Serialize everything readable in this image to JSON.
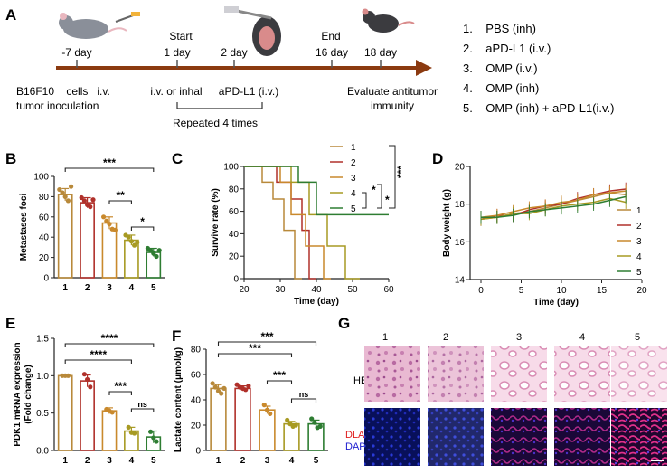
{
  "colors": {
    "g1": "#b8893a",
    "g2": "#b0302a",
    "g3": "#c9892c",
    "g4": "#a79a23",
    "g5": "#2e7d32",
    "axis": "#222222",
    "arrow": "#8b3a10"
  },
  "timeline": {
    "panel": "A",
    "day_labels": [
      "-7 day",
      "1 day",
      "2 day",
      "16 day",
      "18 day"
    ],
    "start": "Start",
    "end": "End",
    "notes": [
      "B16F10    cells   i.v.",
      "tumor inoculation",
      "i.v. or inhal",
      "aPD-L1 (i.v.)",
      "Repeated 4 times",
      "Evaluate antitumor",
      "immunity"
    ]
  },
  "legend_groups": [
    "1.    PBS (inh)",
    "2.    aPD-L1 (i.v.)",
    "3.    OMP (i.v.)",
    "4.    OMP (inh)",
    "5.    OMP (inh) + aPD-L1(i.v.)"
  ],
  "chart_data": [
    {
      "panel": "B",
      "type": "bar",
      "ylabel": "Metastases foci",
      "categories": [
        "1",
        "2",
        "3",
        "4",
        "5"
      ],
      "values": [
        82,
        74,
        54,
        37,
        25
      ],
      "errors": [
        6,
        5,
        6,
        5,
        4
      ],
      "ylim": [
        0,
        100
      ],
      "yticks": [
        "0",
        "20",
        "40",
        "60",
        "80",
        "100"
      ],
      "points": [
        [
          87,
          84,
          80,
          76,
          90
        ],
        [
          79,
          76,
          72,
          70,
          77
        ],
        [
          60,
          56,
          53,
          48,
          47
        ],
        [
          42,
          40,
          36,
          32,
          35
        ],
        [
          29,
          27,
          24,
          21,
          27
        ]
      ],
      "sig": [
        {
          "a": 1,
          "b": 5,
          "label": "***"
        },
        {
          "a": 3,
          "b": 4,
          "label": "**"
        },
        {
          "a": 4,
          "b": 5,
          "label": "*"
        }
      ]
    },
    {
      "panel": "C",
      "type": "line",
      "xlabel": "Time (day)",
      "ylabel": "Survive rate (%)",
      "xticks": [
        "20",
        "30",
        "40",
        "50",
        "60"
      ],
      "yticks": [
        "0",
        "20",
        "40",
        "60",
        "80",
        "100"
      ],
      "xlim": [
        20,
        60
      ],
      "ylim": [
        0,
        100
      ],
      "series": [
        {
          "name": "1",
          "x": [
            20,
            25,
            25,
            28,
            28,
            31,
            31,
            34,
            34,
            36
          ],
          "y": [
            100,
            100,
            86,
            86,
            71,
            71,
            43,
            43,
            0,
            0
          ]
        },
        {
          "name": "2",
          "x": [
            20,
            29,
            29,
            33,
            33,
            36,
            36,
            38,
            38,
            40
          ],
          "y": [
            100,
            100,
            86,
            86,
            71,
            71,
            43,
            43,
            0,
            0
          ]
        },
        {
          "name": "3",
          "x": [
            20,
            30,
            30,
            33,
            33,
            37,
            37,
            42,
            42,
            44
          ],
          "y": [
            100,
            100,
            86,
            86,
            57,
            57,
            29,
            29,
            0,
            0
          ]
        },
        {
          "name": "4",
          "x": [
            20,
            33,
            33,
            38,
            38,
            43,
            43,
            48,
            48,
            52
          ],
          "y": [
            100,
            100,
            86,
            86,
            57,
            57,
            29,
            29,
            0,
            0
          ]
        },
        {
          "name": "5",
          "x": [
            20,
            35,
            35,
            40,
            40,
            60
          ],
          "y": [
            100,
            100,
            86,
            86,
            57,
            57
          ]
        }
      ],
      "sig": [
        {
          "label": "*"
        },
        {
          "label": "*"
        },
        {
          "label": "***"
        }
      ]
    },
    {
      "panel": "D",
      "type": "line",
      "xlabel": "Time (day)",
      "ylabel": "Body weight (g)",
      "xticks": [
        "0",
        "5",
        "10",
        "15",
        "20"
      ],
      "yticks": [
        "14",
        "16",
        "18",
        "20"
      ],
      "xlim": [
        0,
        20
      ],
      "ylim": [
        14,
        20
      ],
      "x": [
        0,
        2,
        4,
        6,
        8,
        10,
        12,
        14,
        16,
        18
      ],
      "series": [
        {
          "name": "1",
          "values": [
            17.2,
            17.3,
            17.5,
            17.6,
            17.8,
            18.0,
            18.2,
            18.4,
            18.6,
            18.5
          ]
        },
        {
          "name": "2",
          "values": [
            17.2,
            17.4,
            17.4,
            17.7,
            17.9,
            18.0,
            18.3,
            18.5,
            18.7,
            18.8
          ]
        },
        {
          "name": "3",
          "values": [
            17.3,
            17.4,
            17.6,
            17.8,
            17.9,
            18.1,
            18.2,
            18.5,
            18.6,
            18.7
          ]
        },
        {
          "name": "4",
          "values": [
            17.2,
            17.3,
            17.5,
            17.5,
            17.7,
            17.9,
            18.0,
            18.1,
            18.3,
            18.1
          ]
        },
        {
          "name": "5",
          "values": [
            17.3,
            17.3,
            17.4,
            17.6,
            17.7,
            17.8,
            17.9,
            18.0,
            18.2,
            18.4
          ]
        }
      ]
    },
    {
      "panel": "E",
      "type": "bar",
      "ylabel": "PDK1 mRNA expression (Fold change)",
      "categories": [
        "1",
        "2",
        "3",
        "4",
        "5"
      ],
      "values": [
        1.0,
        0.93,
        0.53,
        0.26,
        0.18
      ],
      "errors": [
        0.01,
        0.08,
        0.04,
        0.05,
        0.08
      ],
      "ylim": [
        0,
        1.5
      ],
      "yticks": [
        "0.0",
        "0.5",
        "1.0",
        "1.5"
      ],
      "points": [
        [
          1.0,
          1.0,
          1.0
        ],
        [
          1.02,
          0.95,
          0.85
        ],
        [
          0.55,
          0.53,
          0.51
        ],
        [
          0.31,
          0.24,
          0.23
        ],
        [
          0.25,
          0.17,
          0.12
        ]
      ],
      "sig": [
        {
          "a": 1,
          "b": 5,
          "label": "****"
        },
        {
          "a": 1,
          "b": 4,
          "label": "****"
        },
        {
          "a": 3,
          "b": 4,
          "label": "***"
        },
        {
          "a": 4,
          "b": 5,
          "label": "ns"
        }
      ]
    },
    {
      "panel": "F",
      "type": "bar",
      "ylabel": "Lactate content (μmol/g)",
      "categories": [
        "1",
        "2",
        "3",
        "4",
        "5"
      ],
      "values": [
        49,
        49,
        32,
        21,
        21
      ],
      "errors": [
        3,
        2,
        3,
        2,
        3
      ],
      "ylim": [
        0,
        80
      ],
      "yticks": [
        "0",
        "20",
        "40",
        "60",
        "80"
      ],
      "points": [
        [
          53,
          50,
          47,
          45,
          49
        ],
        [
          52,
          50,
          49,
          48,
          51
        ],
        [
          36,
          32,
          29
        ],
        [
          24,
          21,
          19,
          20
        ],
        [
          25,
          22,
          18,
          19
        ]
      ],
      "sig": [
        {
          "a": 1,
          "b": 5,
          "label": "***"
        },
        {
          "a": 1,
          "b": 4,
          "label": "***"
        },
        {
          "a": 3,
          "b": 4,
          "label": "***"
        },
        {
          "a": 4,
          "b": 5,
          "label": "ns"
        }
      ]
    }
  ],
  "panel_g": {
    "panel": "G",
    "columns": [
      "1",
      "2",
      "3",
      "4",
      "5"
    ],
    "rows": [
      "HE",
      "DLAT",
      "DAPI"
    ]
  }
}
